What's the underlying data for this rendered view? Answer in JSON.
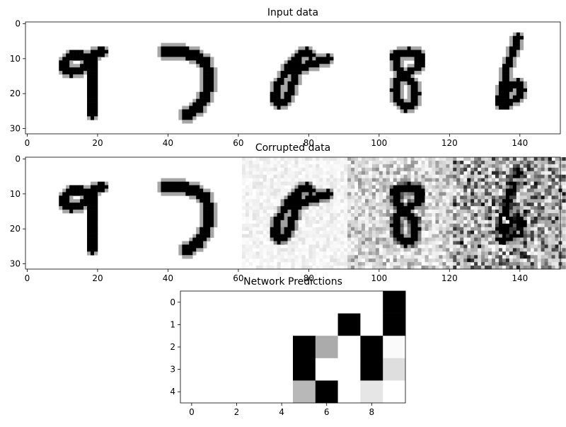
{
  "chart_data": [
    {
      "type": "heatmap",
      "title": "Input data",
      "colormap": "gray_r",
      "x_ticks": [
        0,
        20,
        40,
        60,
        80,
        100,
        120,
        140
      ],
      "y_ticks": [
        0,
        10,
        20,
        30
      ],
      "x_range": [
        -0.5,
        151.5
      ],
      "y_range": [
        -0.5,
        31.5
      ],
      "digits": [
        {
          "label": "9",
          "noise": 0
        },
        {
          "label": "7",
          "noise": 0
        },
        {
          "label": "8",
          "noise": 0
        },
        {
          "label": "8",
          "noise": 0
        },
        {
          "label": "6",
          "noise": 0
        }
      ]
    },
    {
      "type": "heatmap",
      "title": "Corrupted data",
      "colormap": "gray_r",
      "x_ticks": [
        0,
        20,
        40,
        60,
        80,
        100,
        120,
        140
      ],
      "y_ticks": [
        0,
        10,
        20,
        30
      ],
      "x_range": [
        -0.5,
        151.5
      ],
      "y_range": [
        -0.5,
        31.5
      ],
      "digits": [
        {
          "label": "9",
          "noise": 0
        },
        {
          "label": "7",
          "noise": 0
        },
        {
          "label": "8",
          "noise": 0.12
        },
        {
          "label": "8",
          "noise": 0.45
        },
        {
          "label": "6",
          "noise": 0.85
        }
      ]
    },
    {
      "type": "heatmap",
      "title": "Network Predictions",
      "colormap": "gray_r",
      "x_ticks": [
        0,
        2,
        4,
        6,
        8
      ],
      "y_ticks": [
        0,
        1,
        2,
        3,
        4
      ],
      "x_range": [
        -0.5,
        9.5
      ],
      "y_range": [
        -0.5,
        4.5
      ],
      "values": [
        [
          0,
          0,
          0,
          0,
          0,
          0,
          0,
          0,
          0,
          1
        ],
        [
          0,
          0,
          0,
          0,
          0,
          0,
          0,
          1,
          0,
          1
        ],
        [
          0,
          0,
          0,
          0,
          0,
          1,
          0.33,
          0,
          1,
          0.02
        ],
        [
          0,
          0,
          0,
          0,
          0,
          1,
          0,
          0,
          1,
          0.13
        ],
        [
          0,
          0,
          0,
          0,
          0,
          0.28,
          1,
          0,
          0.1,
          0
        ]
      ]
    }
  ]
}
